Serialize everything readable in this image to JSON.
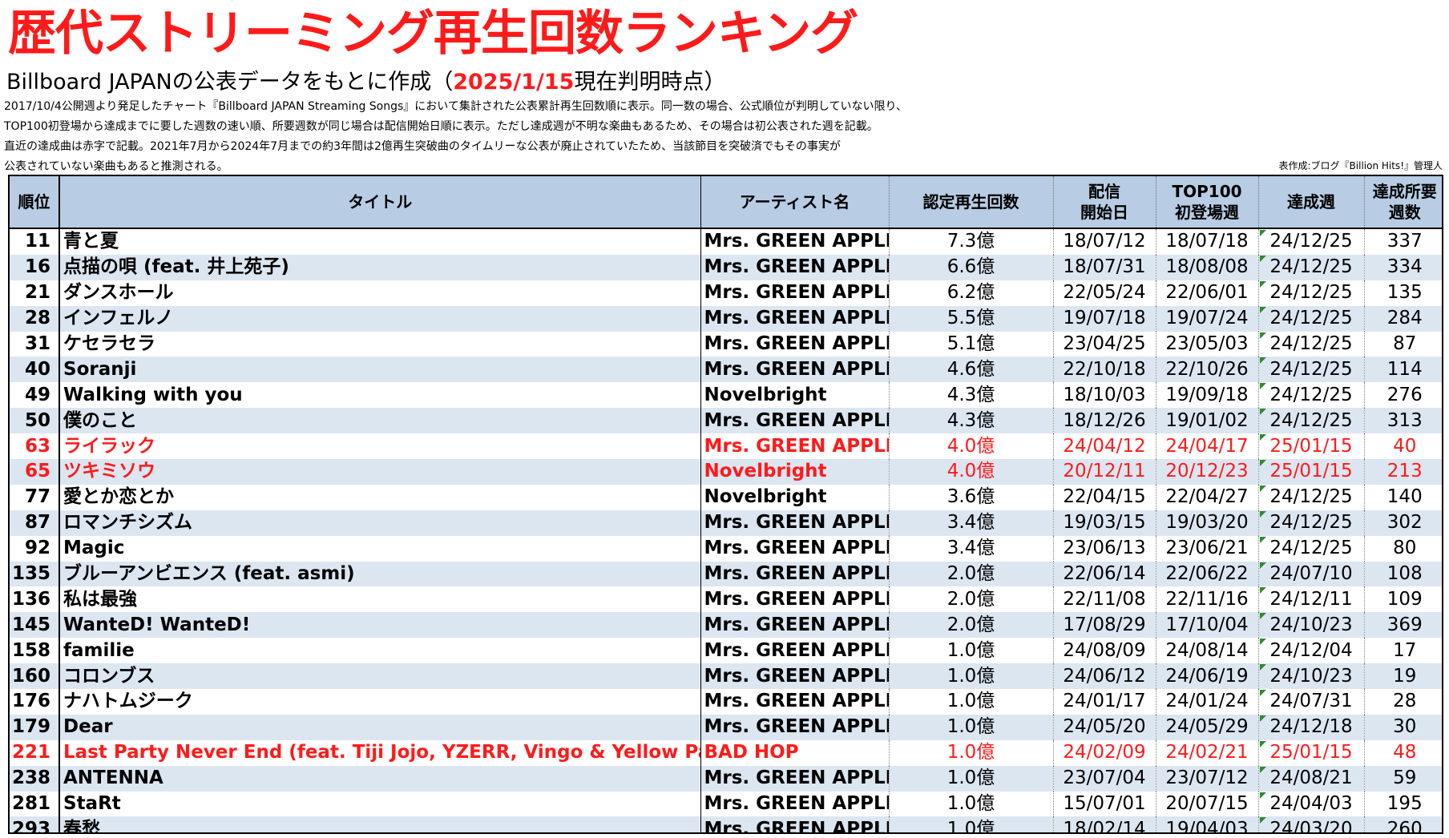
{
  "title": "歴代ストリーミング再生回数ランキング",
  "subtitle": {
    "prefix": "Billboard JAPANの公表データをもとに作成（",
    "highlight": "2025/1/15",
    "suffix": "現在判明時点）"
  },
  "notes": [
    "2017/10/4公開週より発足したチャート『Billboard JAPAN Streaming Songs』において集計された公表累計再生回数順に表示。同一数の場合、公式順位が判明していない限り、",
    "TOP100初登場から達成までに要した週数の速い順、所要週数が同じ場合は配信開始日順に表示。ただし達成週が不明な楽曲もあるため、その場合は初公表された週を記載。",
    "直近の達成曲は赤字で記載。2021年7月から2024年7月までの約3年間は2億再生突破曲のタイムリーな公表が廃止されていたため、当該節目を突破済でもその事実が",
    "公表されていない楽曲もあると推測される。"
  ],
  "credit": "表作成:ブログ『Billion Hits!』管理人",
  "columns": {
    "rank": "順位",
    "title": "タイトル",
    "artist": "アーティスト名",
    "plays": "認定再生回数",
    "release_1": "配信",
    "release_2": "開始日",
    "debut_1": "TOP100",
    "debut_2": "初登場週",
    "achieved": "達成週",
    "weeks_1": "達成所要",
    "weeks_2": "週数"
  },
  "rows": [
    {
      "rank": "11",
      "title": "青と夏",
      "artist": "Mrs. GREEN APPLE",
      "plays": "7.3億",
      "release": "18/07/12",
      "debut": "18/07/18",
      "achieved": "24/12/25",
      "weeks": "337",
      "recent": false
    },
    {
      "rank": "16",
      "title": "点描の唄 (feat. 井上苑子)",
      "artist": "Mrs. GREEN APPLE",
      "plays": "6.6億",
      "release": "18/07/31",
      "debut": "18/08/08",
      "achieved": "24/12/25",
      "weeks": "334",
      "recent": false
    },
    {
      "rank": "21",
      "title": "ダンスホール",
      "artist": "Mrs. GREEN APPLE",
      "plays": "6.2億",
      "release": "22/05/24",
      "debut": "22/06/01",
      "achieved": "24/12/25",
      "weeks": "135",
      "recent": false
    },
    {
      "rank": "28",
      "title": "インフェルノ",
      "artist": "Mrs. GREEN APPLE",
      "plays": "5.5億",
      "release": "19/07/18",
      "debut": "19/07/24",
      "achieved": "24/12/25",
      "weeks": "284",
      "recent": false
    },
    {
      "rank": "31",
      "title": "ケセラセラ",
      "artist": "Mrs. GREEN APPLE",
      "plays": "5.1億",
      "release": "23/04/25",
      "debut": "23/05/03",
      "achieved": "24/12/25",
      "weeks": "87",
      "recent": false
    },
    {
      "rank": "40",
      "title": "Soranji",
      "artist": "Mrs. GREEN APPLE",
      "plays": "4.6億",
      "release": "22/10/18",
      "debut": "22/10/26",
      "achieved": "24/12/25",
      "weeks": "114",
      "recent": false
    },
    {
      "rank": "49",
      "title": "Walking with you",
      "artist": "Novelbright",
      "plays": "4.3億",
      "release": "18/10/03",
      "debut": "19/09/18",
      "achieved": "24/12/25",
      "weeks": "276",
      "recent": false
    },
    {
      "rank": "50",
      "title": "僕のこと",
      "artist": "Mrs. GREEN APPLE",
      "plays": "4.3億",
      "release": "18/12/26",
      "debut": "19/01/02",
      "achieved": "24/12/25",
      "weeks": "313",
      "recent": false
    },
    {
      "rank": "63",
      "title": "ライラック",
      "artist": "Mrs. GREEN APPLE",
      "plays": "4.0億",
      "release": "24/04/12",
      "debut": "24/04/17",
      "achieved": "25/01/15",
      "weeks": "40",
      "recent": true
    },
    {
      "rank": "65",
      "title": "ツキミソウ",
      "artist": "Novelbright",
      "plays": "4.0億",
      "release": "20/12/11",
      "debut": "20/12/23",
      "achieved": "25/01/15",
      "weeks": "213",
      "recent": true
    },
    {
      "rank": "77",
      "title": "愛とか恋とか",
      "artist": "Novelbright",
      "plays": "3.6億",
      "release": "22/04/15",
      "debut": "22/04/27",
      "achieved": "24/12/25",
      "weeks": "140",
      "recent": false
    },
    {
      "rank": "87",
      "title": "ロマンチシズム",
      "artist": "Mrs. GREEN APPLE",
      "plays": "3.4億",
      "release": "19/03/15",
      "debut": "19/03/20",
      "achieved": "24/12/25",
      "weeks": "302",
      "recent": false
    },
    {
      "rank": "92",
      "title": "Magic",
      "artist": "Mrs. GREEN APPLE",
      "plays": "3.4億",
      "release": "23/06/13",
      "debut": "23/06/21",
      "achieved": "24/12/25",
      "weeks": "80",
      "recent": false
    },
    {
      "rank": "135",
      "title": "ブルーアンビエンス (feat. asmi)",
      "artist": "Mrs. GREEN APPLE",
      "plays": "2.0億",
      "release": "22/06/14",
      "debut": "22/06/22",
      "achieved": "24/07/10",
      "weeks": "108",
      "recent": false
    },
    {
      "rank": "136",
      "title": "私は最強",
      "artist": "Mrs. GREEN APPLE",
      "plays": "2.0億",
      "release": "22/11/08",
      "debut": "22/11/16",
      "achieved": "24/12/11",
      "weeks": "109",
      "recent": false
    },
    {
      "rank": "145",
      "title": "WanteD! WanteD!",
      "artist": "Mrs. GREEN APPLE",
      "plays": "2.0億",
      "release": "17/08/29",
      "debut": "17/10/04",
      "achieved": "24/10/23",
      "weeks": "369",
      "recent": false
    },
    {
      "rank": "158",
      "title": "familie",
      "artist": "Mrs. GREEN APPLE",
      "plays": "1.0億",
      "release": "24/08/09",
      "debut": "24/08/14",
      "achieved": "24/12/04",
      "weeks": "17",
      "recent": false
    },
    {
      "rank": "160",
      "title": "コロンブス",
      "artist": "Mrs. GREEN APPLE",
      "plays": "1.0億",
      "release": "24/06/12",
      "debut": "24/06/19",
      "achieved": "24/10/23",
      "weeks": "19",
      "recent": false
    },
    {
      "rank": "176",
      "title": "ナハトムジーク",
      "artist": "Mrs. GREEN APPLE",
      "plays": "1.0億",
      "release": "24/01/17",
      "debut": "24/01/24",
      "achieved": "24/07/31",
      "weeks": "28",
      "recent": false
    },
    {
      "rank": "179",
      "title": "Dear",
      "artist": "Mrs. GREEN APPLE",
      "plays": "1.0億",
      "release": "24/05/20",
      "debut": "24/05/29",
      "achieved": "24/12/18",
      "weeks": "30",
      "recent": false
    },
    {
      "rank": "221",
      "title": "Last Party Never End (feat. Tiji Jojo, YZERR, Vingo & Yellow Pato)",
      "artist": "BAD HOP",
      "plays": "1.0億",
      "release": "24/02/09",
      "debut": "24/02/21",
      "achieved": "25/01/15",
      "weeks": "48",
      "recent": true
    },
    {
      "rank": "238",
      "title": "ANTENNA",
      "artist": "Mrs. GREEN APPLE",
      "plays": "1.0億",
      "release": "23/07/04",
      "debut": "23/07/12",
      "achieved": "24/08/21",
      "weeks": "59",
      "recent": false
    },
    {
      "rank": "281",
      "title": "StaRt",
      "artist": "Mrs. GREEN APPLE",
      "plays": "1.0億",
      "release": "15/07/01",
      "debut": "20/07/15",
      "achieved": "24/04/03",
      "weeks": "195",
      "recent": false
    },
    {
      "rank": "293",
      "title": "春愁",
      "artist": "Mrs. GREEN APPLE",
      "plays": "1.0億",
      "release": "18/02/14",
      "debut": "19/04/03",
      "achieved": "24/03/20",
      "weeks": "260",
      "recent": false
    }
  ],
  "colors": {
    "highlight_red": "#ff1a1a",
    "header_bg": "#b8cce4",
    "row_alt_bg": "#dce6f1",
    "comment_marker": "#2e8b2e"
  }
}
